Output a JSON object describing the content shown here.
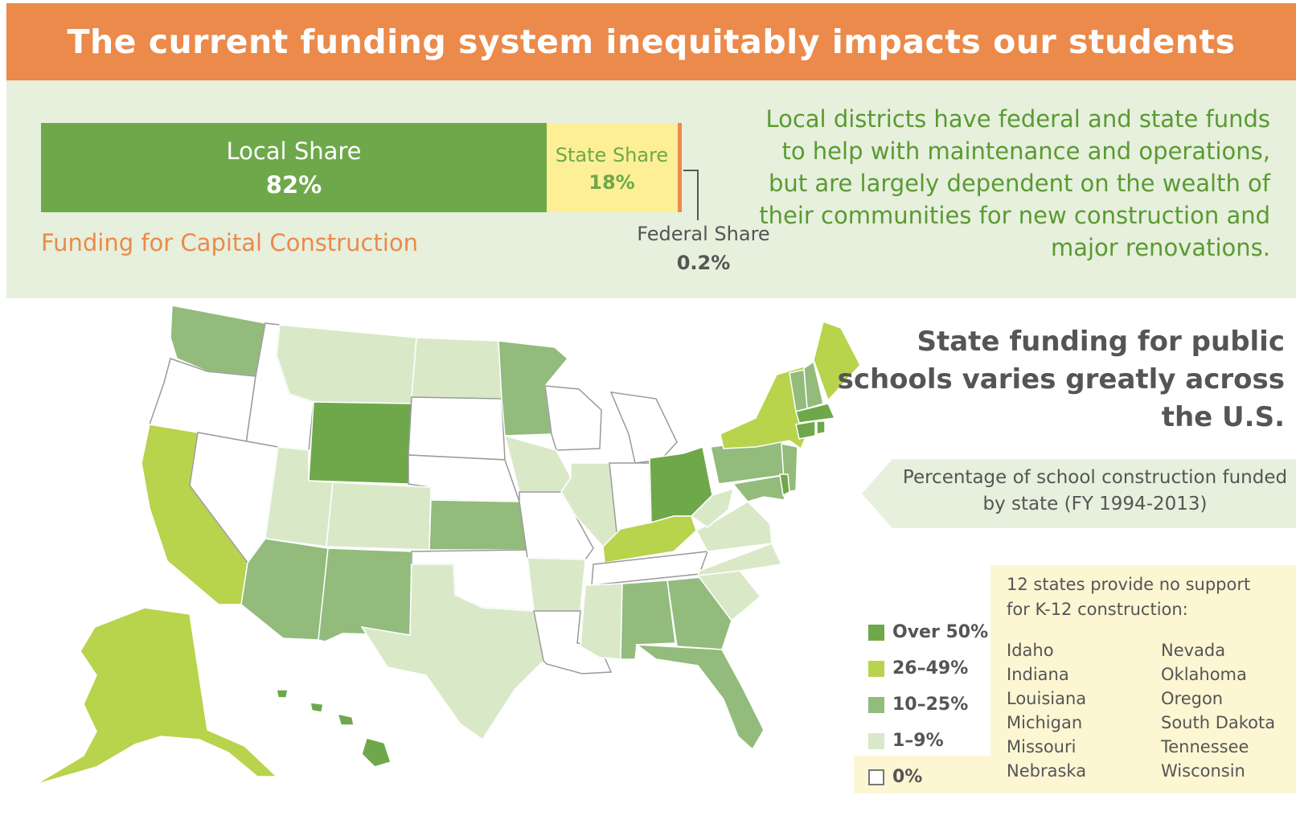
{
  "title": "The current funding system inequitably impacts our students",
  "funding_bar": {
    "segments": [
      {
        "label": "Local Share",
        "value": "82%"
      },
      {
        "label": "State Share",
        "value": "18%"
      },
      {
        "label": "Federal Share",
        "value": "0.2%"
      }
    ],
    "caption": "Funding for Capital Construction"
  },
  "summary": "Local districts have federal and state funds to help with maintenance and operations, but are largely dependent on the wealth of their communities for new construction and major renovations.",
  "map_heading": "State funding for public schools varies greatly across the U.S.",
  "map_subtitle": "Percentage of school construction funded by state (FY 1994-2013)",
  "legend": [
    {
      "label": "Over 50%",
      "color": "#6ea84a"
    },
    {
      "label": "26–49%",
      "color": "#b8d34c"
    },
    {
      "label": "10–25%",
      "color": "#92bb7c"
    },
    {
      "label": "1–9%",
      "color": "#d9e9c8"
    },
    {
      "label": "0%",
      "color": "#ffffff"
    }
  ],
  "no_support": {
    "heading": "12 states provide no support for K-12 construction:",
    "col1": [
      "Idaho",
      "Indiana",
      "Louisiana",
      "Michigan",
      "Missouri",
      "Nebraska"
    ],
    "col2": [
      "Nevada",
      "Oklahoma",
      "Oregon",
      "South Dakota",
      "Tennessee",
      "Wisconsin"
    ]
  },
  "colors": {
    "banner": "#eb8a4b",
    "panel": "#e6f0dc",
    "local": "#6ea84a",
    "state": "#fcef96",
    "federal": "#eb8a4b",
    "summary_text": "#5a9a32",
    "note_box": "#fdf6d3"
  }
}
